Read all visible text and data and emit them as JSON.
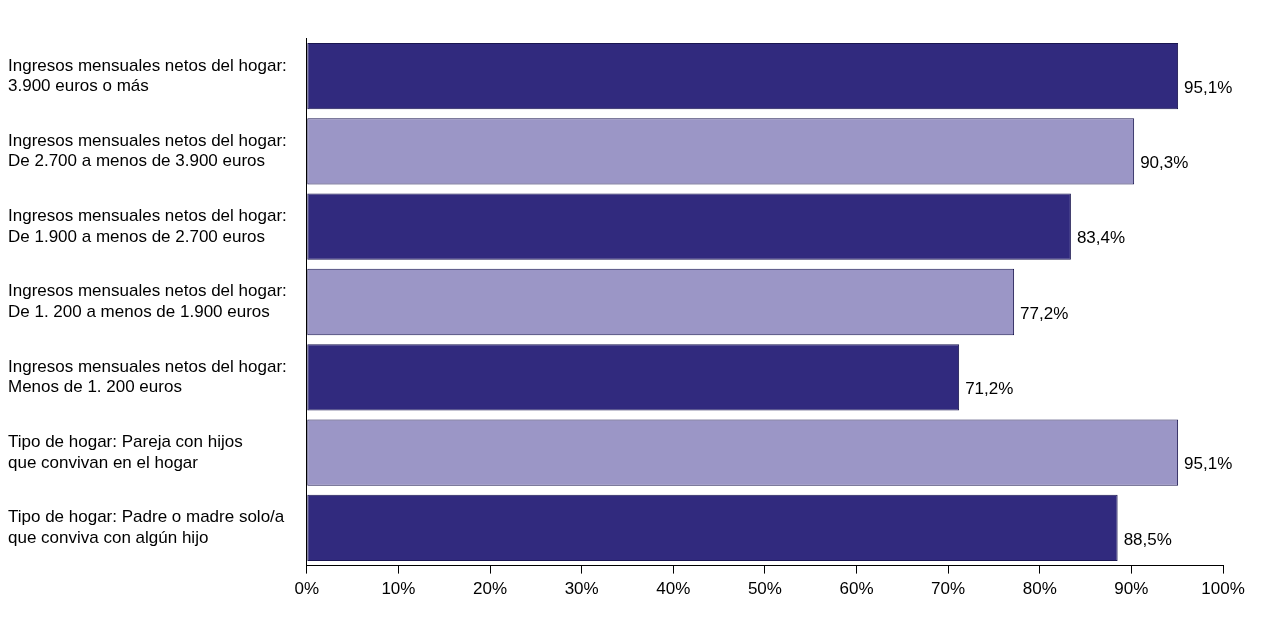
{
  "chart_data": {
    "type": "bar",
    "orientation": "horizontal",
    "categories": [
      "Ingresos mensuales netos del hogar:\n3.900 euros o más",
      "Ingresos mensuales netos del hogar:\nDe 2.700 a menos de 3.900 euros",
      "Ingresos mensuales netos del hogar:\nDe 1.900 a menos de 2.700 euros",
      "Ingresos mensuales netos del hogar:\nDe 1. 200 a menos de 1.900 euros",
      "Ingresos mensuales netos del hogar:\nMenos de 1. 200 euros",
      "Tipo de hogar: Pareja con hijos\nque convivan en el hogar",
      "Tipo de hogar: Padre o madre solo/a\nque conviva con algún hijo"
    ],
    "values": [
      95.1,
      90.3,
      83.4,
      77.2,
      71.2,
      95.1,
      88.5
    ],
    "value_labels": [
      "95,1%",
      "90,3%",
      "83,4%",
      "77,2%",
      "71,2%",
      "95,1%",
      "88,5%"
    ],
    "colors": [
      "#312a7e",
      "#9b96c6",
      "#312a7e",
      "#9b96c6",
      "#312a7e",
      "#9b96c6",
      "#312a7e"
    ],
    "xlim": [
      0,
      100
    ],
    "xticks": [
      {
        "value": 0,
        "label": "0%"
      },
      {
        "value": 10,
        "label": "10%"
      },
      {
        "value": 20,
        "label": "20%"
      },
      {
        "value": 30,
        "label": "30%"
      },
      {
        "value": 40,
        "label": "40%"
      },
      {
        "value": 50,
        "label": "50%"
      },
      {
        "value": 60,
        "label": "60%"
      },
      {
        "value": 70,
        "label": "70%"
      },
      {
        "value": 80,
        "label": "80%"
      },
      {
        "value": 90,
        "label": "90%"
      },
      {
        "value": 100,
        "label": "100%"
      }
    ],
    "grid": false,
    "legend": false
  }
}
